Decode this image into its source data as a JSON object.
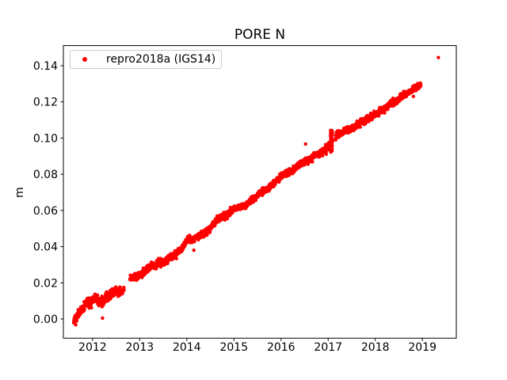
{
  "chart_data": {
    "type": "scatter",
    "title": "PORE N",
    "xlabel": "",
    "ylabel": "m",
    "xlim": [
      2011.38,
      2019.72
    ],
    "ylim": [
      -0.0106,
      0.1511
    ],
    "xticks": [
      2012,
      2013,
      2014,
      2015,
      2016,
      2017,
      2018,
      2019
    ],
    "xtick_labels": [
      "2012",
      "2013",
      "2014",
      "2015",
      "2016",
      "2017",
      "2018",
      "2019"
    ],
    "yticks": [
      0.0,
      0.02,
      0.04,
      0.06,
      0.08,
      0.1,
      0.12,
      0.14
    ],
    "ytick_labels": [
      "0.00",
      "0.02",
      "0.04",
      "0.06",
      "0.08",
      "0.10",
      "0.12",
      "0.14"
    ],
    "grid": false,
    "axis_color": "#000000",
    "background_color": "#ffffff",
    "legend": {
      "label": "repro2018a (IGS14)",
      "location": "upper left",
      "marker_color": "#ff0000",
      "edge_color": "#cccccc"
    },
    "series": [
      {
        "name": "repro2018a (IGS14)",
        "color": "#ff0000",
        "marker": "o",
        "marker_radius_px": 2.2,
        "sampling_step_years": 0.0027379,
        "noise_sigma": 0.0009,
        "trend_anchors": [
          [
            2011.6,
            -0.0015
          ],
          [
            2011.66,
            0.0005
          ],
          [
            2011.72,
            0.003
          ],
          [
            2011.8,
            0.006
          ],
          [
            2011.88,
            0.0095
          ],
          [
            2011.96,
            0.0085
          ],
          [
            2012.05,
            0.0115
          ],
          [
            2012.13,
            0.0105
          ],
          [
            2012.2,
            0.009
          ],
          [
            2012.28,
            0.012
          ],
          [
            2012.38,
            0.014
          ],
          [
            2012.48,
            0.0155
          ],
          [
            2012.56,
            0.0145
          ],
          [
            2012.64,
            0.016
          ],
          [
            2012.79,
            0.0225
          ],
          [
            2012.9,
            0.0235
          ],
          [
            2013.0,
            0.0245
          ],
          [
            2013.1,
            0.0265
          ],
          [
            2013.22,
            0.029
          ],
          [
            2013.32,
            0.0295
          ],
          [
            2013.42,
            0.0315
          ],
          [
            2013.5,
            0.031
          ],
          [
            2013.6,
            0.0335
          ],
          [
            2013.72,
            0.035
          ],
          [
            2013.85,
            0.038
          ],
          [
            2013.95,
            0.041
          ],
          [
            2014.03,
            0.0445
          ],
          [
            2014.1,
            0.0435
          ],
          [
            2014.22,
            0.0455
          ],
          [
            2014.35,
            0.047
          ],
          [
            2014.45,
            0.049
          ],
          [
            2014.55,
            0.052
          ],
          [
            2014.65,
            0.055
          ],
          [
            2014.78,
            0.0565
          ],
          [
            2014.9,
            0.0585
          ],
          [
            2015.0,
            0.061
          ],
          [
            2015.1,
            0.062
          ],
          [
            2015.22,
            0.0625
          ],
          [
            2015.32,
            0.0645
          ],
          [
            2015.45,
            0.067
          ],
          [
            2015.55,
            0.0695
          ],
          [
            2015.65,
            0.0715
          ],
          [
            2015.78,
            0.073
          ],
          [
            2015.9,
            0.076
          ],
          [
            2016.0,
            0.079
          ],
          [
            2016.12,
            0.0805
          ],
          [
            2016.25,
            0.082
          ],
          [
            2016.38,
            0.085
          ],
          [
            2016.5,
            0.087
          ],
          [
            2016.62,
            0.088
          ],
          [
            2016.75,
            0.091
          ],
          [
            2016.88,
            0.0925
          ],
          [
            2017.0,
            0.0955
          ],
          [
            2017.08,
            0.0985
          ],
          [
            2017.2,
            0.102
          ],
          [
            2017.35,
            0.104
          ],
          [
            2017.5,
            0.1055
          ],
          [
            2017.65,
            0.108
          ],
          [
            2017.8,
            0.11
          ],
          [
            2017.95,
            0.112
          ],
          [
            2018.1,
            0.115
          ],
          [
            2018.25,
            0.117
          ],
          [
            2018.4,
            0.12
          ],
          [
            2018.55,
            0.123
          ],
          [
            2018.7,
            0.125
          ],
          [
            2018.85,
            0.128
          ],
          [
            2018.97,
            0.13
          ]
        ],
        "gaps": [
          [
            2012.67,
            2012.79
          ],
          [
            2017.1,
            2017.16
          ]
        ],
        "dense_clusters": [
          {
            "t_center": 2017.07,
            "t_width": 0.04,
            "v_min": 0.092,
            "v_max": 0.106,
            "count": 45
          }
        ],
        "outliers": [
          [
            2012.21,
            0.0005
          ],
          [
            2014.15,
            0.038
          ],
          [
            2016.52,
            0.0967
          ],
          [
            2018.81,
            0.123
          ],
          [
            2019.34,
            0.1445
          ]
        ]
      }
    ]
  }
}
